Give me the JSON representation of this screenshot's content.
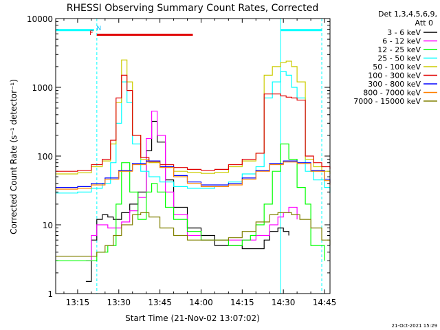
{
  "chart_data": {
    "type": "line",
    "title": "RHESSI Observing Summary Count Rates, Corrected",
    "xlabel": "Start Time (21-Nov-02 13:07:02)",
    "ylabel": "Corrected Count Rate (s⁻¹ detector⁻¹)",
    "y_scale": "log",
    "ylim": [
      1,
      10000
    ],
    "xlim": [
      "13:07",
      "14:47"
    ],
    "x_ticks": [
      "13:15",
      "13:30",
      "13:45",
      "14:00",
      "14:15",
      "14:30",
      "14:45"
    ],
    "y_ticks": [
      "1",
      "10",
      "100",
      "1000",
      "10000"
    ],
    "legend_placement": "top-right",
    "legend_title": [
      "Det 1,3,4,5,6,9,",
      "Att 0"
    ],
    "series": [
      {
        "name": "3 - 6 keV",
        "color": "#000000",
        "x": [
          "13:18",
          "13:20",
          "13:22",
          "13:24",
          "13:26",
          "13:28",
          "13:31",
          "13:34",
          "13:37",
          "13:40",
          "13:42",
          "13:44",
          "13:47",
          "13:50",
          "13:55",
          "14:00",
          "14:05",
          "14:10",
          "14:15",
          "14:20",
          "14:23",
          "14:25",
          "14:28",
          "14:30",
          "14:32"
        ],
        "y": [
          1.5,
          6,
          12,
          14,
          13,
          12,
          15,
          20,
          30,
          120,
          320,
          160,
          45,
          18,
          9,
          7,
          5,
          5,
          4.5,
          4.5,
          6,
          8,
          9,
          8,
          7
        ]
      },
      {
        "name": "6 - 12 keV",
        "color": "#ff00ff",
        "x": [
          "13:18",
          "13:20",
          "13:22",
          "13:24",
          "13:26",
          "13:28",
          "13:31",
          "13:34",
          "13:37",
          "13:40",
          "13:42",
          "13:44",
          "13:47",
          "13:50",
          "13:55",
          "14:00",
          "14:05",
          "14:10",
          "14:15",
          "14:20",
          "14:25",
          "14:28",
          "14:30",
          "14:32",
          "14:35"
        ],
        "y": [
          3,
          7,
          10,
          10,
          9,
          9,
          11,
          16,
          25,
          180,
          450,
          200,
          30,
          14,
          7,
          6,
          6,
          6,
          6,
          7,
          10,
          13,
          15,
          18,
          12
        ]
      },
      {
        "name": "12 - 25 keV",
        "color": "#00ff00",
        "x": [
          "13:07",
          "13:12",
          "13:16",
          "13:18",
          "13:22",
          "13:26",
          "13:29",
          "13:31",
          "13:34",
          "13:37",
          "13:40",
          "13:42",
          "13:44",
          "13:47",
          "13:50",
          "13:55",
          "14:00",
          "14:05",
          "14:10",
          "14:15",
          "14:18",
          "14:20",
          "14:23",
          "14:26",
          "14:29",
          "14:32",
          "14:35",
          "14:38",
          "14:40",
          "14:45"
        ],
        "y": [
          3,
          3,
          3,
          3,
          4,
          5,
          20,
          80,
          30,
          12,
          30,
          40,
          30,
          18,
          12,
          8,
          6,
          6,
          5,
          6,
          7,
          10,
          20,
          60,
          150,
          90,
          35,
          20,
          5,
          3
        ]
      },
      {
        "name": "25 - 50 keV",
        "color": "#00ffff",
        "x": [
          "13:07",
          "13:15",
          "13:20",
          "13:24",
          "13:27",
          "13:29",
          "13:31",
          "13:33",
          "13:35",
          "13:38",
          "13:41",
          "13:45",
          "13:50",
          "13:55",
          "14:00",
          "14:05",
          "14:10",
          "14:15",
          "14:20",
          "14:23",
          "14:26",
          "14:29",
          "14:31",
          "14:33",
          "14:35",
          "14:38",
          "14:41",
          "14:45",
          "14:47"
        ],
        "y": [
          29,
          30,
          34,
          40,
          80,
          300,
          1200,
          600,
          150,
          60,
          50,
          42,
          36,
          34,
          34,
          36,
          42,
          55,
          70,
          700,
          1200,
          1700,
          1500,
          1000,
          700,
          60,
          45,
          35,
          29
        ]
      },
      {
        "name": "50 - 100 keV",
        "color": "#cccc00",
        "x": [
          "13:07",
          "13:15",
          "13:20",
          "13:24",
          "13:27",
          "13:29",
          "13:31",
          "13:33",
          "13:35",
          "13:38",
          "13:41",
          "13:45",
          "13:50",
          "13:55",
          "14:00",
          "14:05",
          "14:10",
          "14:15",
          "14:20",
          "14:23",
          "14:26",
          "14:29",
          "14:31",
          "14:33",
          "14:35",
          "14:38",
          "14:41",
          "14:44",
          "14:47"
        ],
        "y": [
          55,
          57,
          70,
          85,
          150,
          600,
          2500,
          1200,
          200,
          90,
          80,
          70,
          60,
          58,
          56,
          58,
          70,
          85,
          110,
          1500,
          2000,
          2300,
          2400,
          2000,
          1200,
          90,
          70,
          60,
          55
        ]
      },
      {
        "name": "100 - 300 keV",
        "color": "#e00000",
        "x": [
          "13:07",
          "13:15",
          "13:20",
          "13:24",
          "13:27",
          "13:29",
          "13:31",
          "13:33",
          "13:35",
          "13:38",
          "13:41",
          "13:45",
          "13:50",
          "13:55",
          "14:00",
          "14:05",
          "14:10",
          "14:15",
          "14:20",
          "14:23",
          "14:26",
          "14:29",
          "14:31",
          "14:33",
          "14:35",
          "14:38",
          "14:41",
          "14:44",
          "14:47"
        ],
        "y": [
          60,
          62,
          75,
          90,
          170,
          700,
          1500,
          900,
          200,
          95,
          85,
          75,
          68,
          64,
          62,
          64,
          75,
          90,
          110,
          800,
          800,
          750,
          720,
          700,
          650,
          100,
          80,
          70,
          65
        ]
      },
      {
        "name": "300 - 800 keV",
        "color": "#0000ff",
        "x": [
          "13:07",
          "13:15",
          "13:20",
          "13:25",
          "13:30",
          "13:35",
          "13:40",
          "13:45",
          "13:50",
          "13:55",
          "14:00",
          "14:05",
          "14:10",
          "14:15",
          "14:20",
          "14:25",
          "14:30",
          "14:35",
          "14:40",
          "14:45",
          "14:47"
        ],
        "y": [
          35,
          36,
          40,
          48,
          62,
          78,
          85,
          70,
          52,
          42,
          38,
          38,
          40,
          48,
          62,
          78,
          85,
          80,
          62,
          46,
          40
        ]
      },
      {
        "name": "800 - 7000 keV",
        "color": "#ff8000",
        "x": [
          "13:07",
          "13:15",
          "13:20",
          "13:25",
          "13:30",
          "13:35",
          "13:40",
          "13:45",
          "13:50",
          "13:55",
          "14:00",
          "14:05",
          "14:10",
          "14:15",
          "14:20",
          "14:25",
          "14:30",
          "14:35",
          "14:40",
          "14:45",
          "14:47"
        ],
        "y": [
          33,
          34,
          38,
          46,
          60,
          75,
          82,
          68,
          50,
          40,
          36,
          36,
          38,
          46,
          60,
          75,
          82,
          78,
          60,
          44,
          38
        ]
      },
      {
        "name": "7000 - 15000 keV",
        "color": "#808000",
        "x": [
          "13:07",
          "13:15",
          "13:20",
          "13:22",
          "13:25",
          "13:28",
          "13:31",
          "13:35",
          "13:38",
          "13:41",
          "13:45",
          "13:50",
          "13:55",
          "14:00",
          "14:05",
          "14:10",
          "14:15",
          "14:20",
          "14:25",
          "14:28",
          "14:30",
          "14:33",
          "14:36",
          "14:40",
          "14:44",
          "14:47"
        ],
        "y": [
          3.5,
          3.5,
          3.5,
          4,
          5,
          7,
          10,
          14,
          15,
          13,
          9,
          7,
          6,
          6,
          6,
          6.5,
          8,
          11,
          14,
          15,
          15,
          14,
          12,
          9,
          6,
          5
        ]
      }
    ],
    "annotations": [
      {
        "text": "N",
        "color": "#00bfff",
        "x": "13:22"
      },
      {
        "text": "F",
        "color": "#e00000",
        "x": "13:21"
      }
    ],
    "bars": [
      {
        "name": "night",
        "color": "#00ffff",
        "ranges": [
          [
            "13:07",
            "13:21"
          ],
          [
            "14:29",
            "14:44"
          ]
        ],
        "y": 6800
      },
      {
        "name": "flare",
        "color": "#e00000",
        "ranges": [
          [
            "13:22",
            "13:57"
          ]
        ],
        "y": 5800
      }
    ],
    "vlines": [
      {
        "x": "13:07",
        "style": "solid",
        "color": "#00ffff"
      },
      {
        "x": "13:22",
        "style": "dashed",
        "color": "#00ffff"
      },
      {
        "x": "14:29",
        "style": "solid",
        "color": "#00ffff"
      },
      {
        "x": "14:44",
        "style": "dashed",
        "color": "#00ffff"
      }
    ]
  },
  "footer": {
    "timestamp": "21-Oct-2021 15:29"
  }
}
